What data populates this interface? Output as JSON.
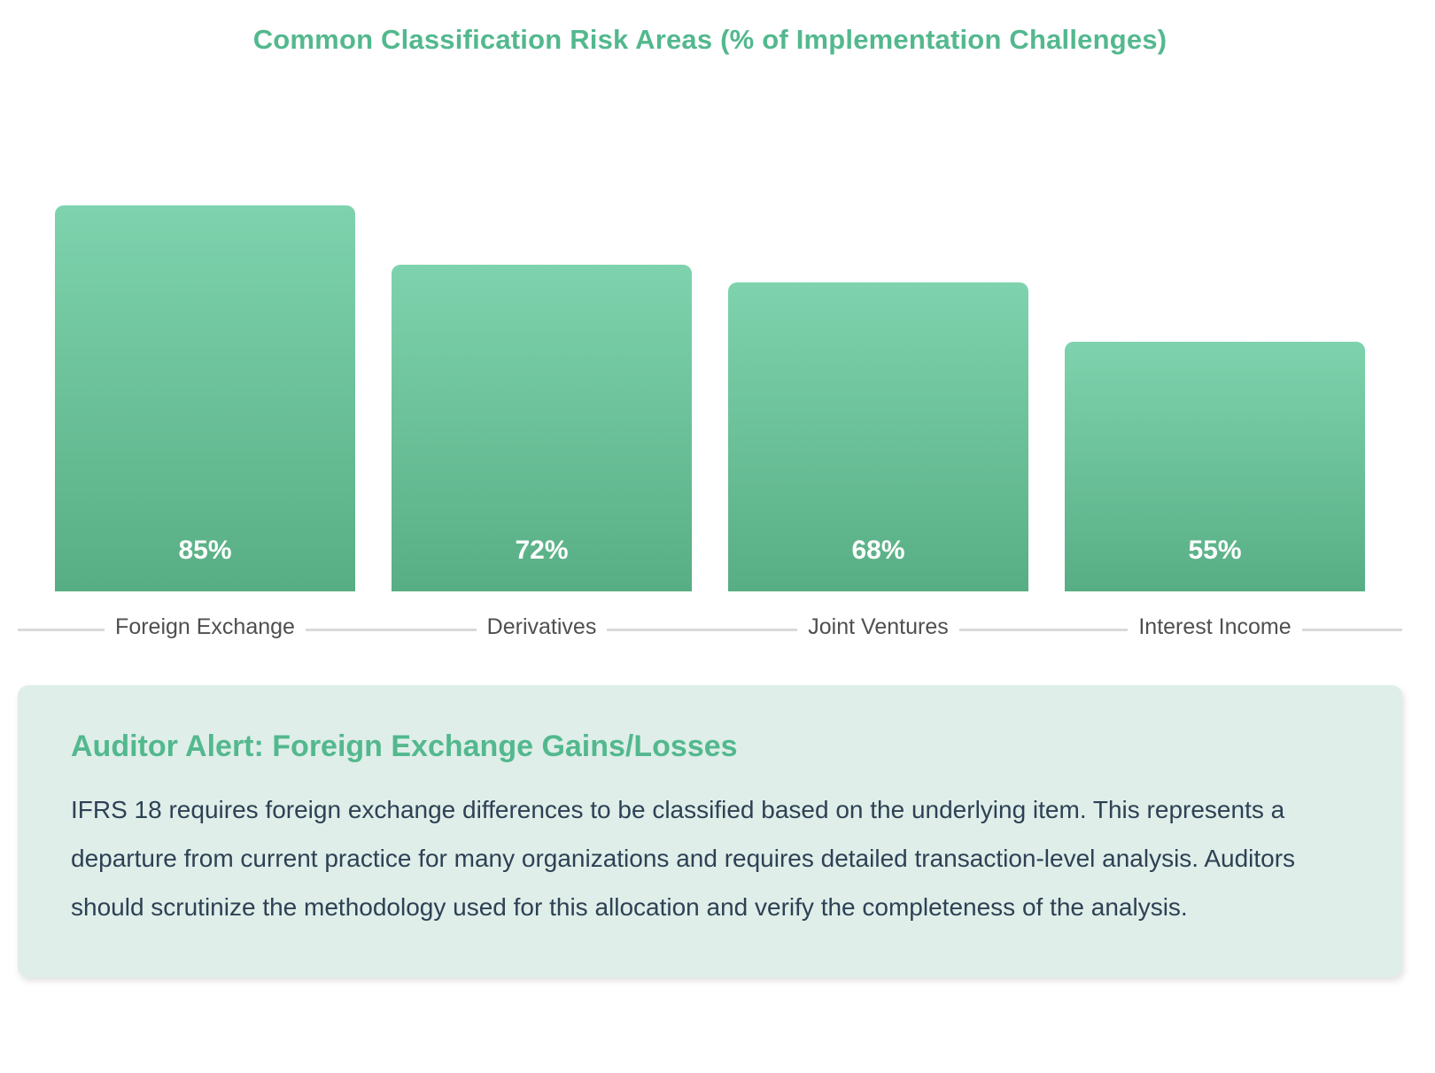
{
  "page": {
    "background": "#ffffff"
  },
  "chart_data": {
    "type": "bar",
    "title": "Common Classification Risk Areas (% of Implementation Challenges)",
    "categories": [
      "Foreign Exchange",
      "Derivatives",
      "Joint Ventures",
      "Interest Income"
    ],
    "values": [
      85,
      72,
      68,
      55
    ],
    "value_labels": [
      "85%",
      "72%",
      "68%",
      "55%"
    ],
    "xlabel": "",
    "ylabel": "",
    "ylim": [
      0,
      100
    ],
    "grid": false,
    "legend": false,
    "value_label_position": "inside-bottom",
    "colors": {
      "title": "#53b88e",
      "bar_gradient_top": "#7ed3ae",
      "bar_gradient_bottom": "#58ae84",
      "value_label": "#ffffff",
      "category_label": "#4f4f4f",
      "axis_line": "#d9d9d9"
    }
  },
  "alert": {
    "heading": "Auditor Alert: Foreign Exchange Gains/Losses",
    "body": "IFRS 18 requires foreign exchange differences to be classified based on the underlying item. This represents a departure from current practice for many organizations and requires detailed transaction-level analysis. Auditors should scrutinize the methodology used for this allocation and verify the completeness of the analysis.",
    "background": "#dfeee9",
    "heading_color": "#53b88e",
    "body_color": "#2e4154"
  }
}
